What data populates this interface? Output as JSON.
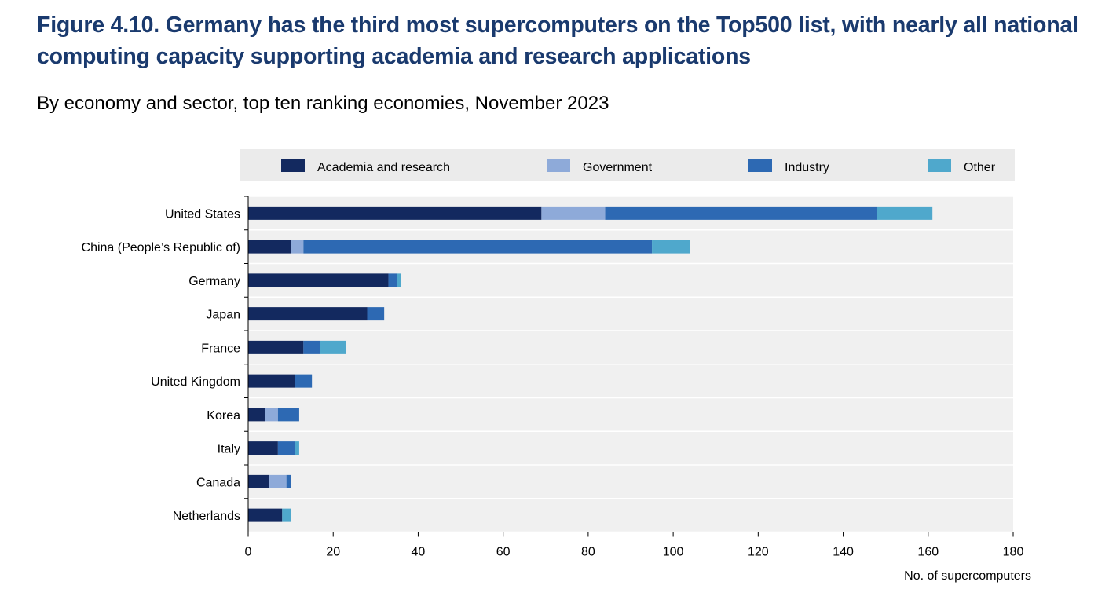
{
  "title": "Figure 4.10. Germany has the third most supercomputers on the Top500 list, with nearly all national computing capacity supporting academia and research applications",
  "subtitle": "By economy and sector, top ten ranking economies, November 2023",
  "chart_data": {
    "type": "bar",
    "orientation": "horizontal",
    "stacked": true,
    "categories": [
      "United States",
      "China (People’s Republic of)",
      "Germany",
      "Japan",
      "France",
      "United Kingdom",
      "Korea",
      "Italy",
      "Canada",
      "Netherlands"
    ],
    "series": [
      {
        "name": "Academia and research",
        "color": "#13295f",
        "values": [
          69,
          10,
          33,
          28,
          13,
          11,
          4,
          7,
          5,
          8
        ]
      },
      {
        "name": "Government",
        "color": "#8eaad9",
        "values": [
          15,
          3,
          0,
          0,
          0,
          0,
          3,
          0,
          4,
          0
        ]
      },
      {
        "name": "Industry",
        "color": "#2d69b3",
        "values": [
          64,
          82,
          2,
          4,
          4,
          4,
          5,
          4,
          1,
          0
        ]
      },
      {
        "name": "Other",
        "color": "#4fa8cc",
        "values": [
          13,
          9,
          1,
          0,
          6,
          0,
          0,
          1,
          0,
          2
        ]
      }
    ],
    "xlim": [
      0,
      180
    ],
    "xticks": [
      "0",
      "20",
      "40",
      "60",
      "80",
      "100",
      "120",
      "140",
      "160",
      "180"
    ],
    "xlabel": "No. of supercomputers",
    "ylabel": "",
    "grid": "horizontal bands",
    "legend": "top"
  }
}
